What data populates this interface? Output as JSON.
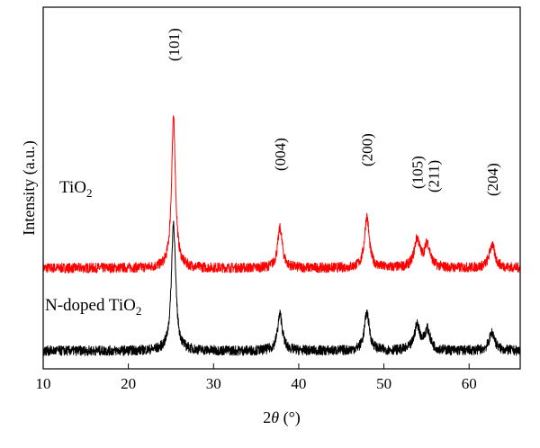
{
  "chart_data": {
    "type": "line",
    "xlabel": "2θ (°)",
    "xlabel_parts": {
      "theta_prefix": "2",
      "theta": "θ",
      "unit": " (°)"
    },
    "ylabel": "Intensity (a.u.)",
    "xlim": [
      10,
      66
    ],
    "xticks": [
      10,
      20,
      30,
      40,
      50,
      60
    ],
    "yticks": "none",
    "grid": false,
    "legend": "none",
    "series": [
      {
        "label_main": "TiO",
        "label_sub": "2",
        "color": "#ff0000",
        "baseline": 1.0,
        "peaks": [
          {
            "x": 25.3,
            "height": 1.8,
            "width": 0.28
          },
          {
            "x": 37.8,
            "height": 0.48,
            "width": 0.33
          },
          {
            "x": 48.0,
            "height": 0.62,
            "width": 0.33
          },
          {
            "x": 53.9,
            "height": 0.34,
            "width": 0.4
          },
          {
            "x": 55.1,
            "height": 0.28,
            "width": 0.4
          },
          {
            "x": 62.7,
            "height": 0.28,
            "width": 0.4
          }
        ]
      },
      {
        "label_main": "N-doped TiO",
        "label_sub": "2",
        "color": "#000000",
        "baseline": 0.0,
        "peaks": [
          {
            "x": 25.3,
            "height": 1.55,
            "width": 0.3
          },
          {
            "x": 37.8,
            "height": 0.44,
            "width": 0.34
          },
          {
            "x": 48.0,
            "height": 0.46,
            "width": 0.35
          },
          {
            "x": 53.9,
            "height": 0.3,
            "width": 0.4
          },
          {
            "x": 55.1,
            "height": 0.24,
            "width": 0.4
          },
          {
            "x": 62.7,
            "height": 0.22,
            "width": 0.4
          }
        ]
      }
    ],
    "annotations": [
      {
        "text": "(101)",
        "x": 25.3
      },
      {
        "text": "(004)",
        "x": 37.8
      },
      {
        "text": "(200)",
        "x": 48.0
      },
      {
        "text": "(105)",
        "x": 53.9
      },
      {
        "text": "(211)",
        "x": 55.8
      },
      {
        "text": "(204)",
        "x": 62.7
      }
    ]
  }
}
